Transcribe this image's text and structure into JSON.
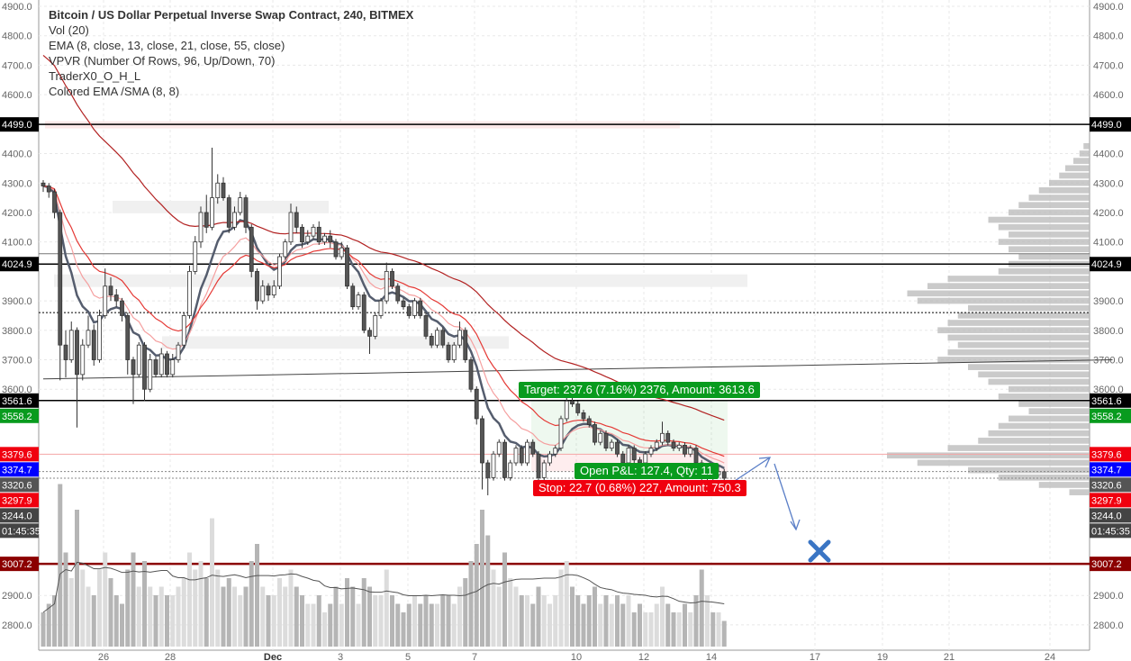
{
  "legend": {
    "title": "Bitcoin / US Dollar Perpetual Inverse Swap Contract, 240, BITMEX",
    "indicators": [
      "Vol (20)",
      "EMA (8, close, 13, close, 21, close, 55, close)",
      "VPVR (Number Of Rows, 96, Up/Down, 70)",
      "TraderX0_O_H_L",
      "Colored EMA /SMA (8, 8)"
    ]
  },
  "position": {
    "target_label": "Target: 237.6 (7.16%) 2376, Amount: 3613.6",
    "open_pnl_label": "Open P&L: 127.4, Qty: 11",
    "stop_label": "Stop: 22.7 (0.68%) 227, Amount: 750.3",
    "target_color": "#089b1e",
    "stop_color": "#f0000f"
  },
  "chart_data": {
    "type": "candlestick",
    "symbol": "Bitcoin / US Dollar Perpetual Inverse Swap Contract",
    "interval": "240",
    "exchange": "BITMEX",
    "ylim": [
      2780,
      4910
    ],
    "y_ticks": [
      4900,
      4800,
      4700,
      4600,
      4400,
      4300,
      4200,
      4100,
      3900,
      3800,
      3700,
      3600,
      2900,
      2800
    ],
    "x_ticks": [
      "26",
      "28",
      "Dec",
      "3",
      "5",
      "7",
      "10",
      "12",
      "14",
      "17",
      "19",
      "21",
      "24"
    ],
    "grid": true,
    "candles_ohlc": [
      [
        4300,
        4310,
        4270,
        4290
      ],
      [
        4290,
        4300,
        4250,
        4270
      ],
      [
        4270,
        4280,
        4180,
        4200
      ],
      [
        4200,
        4210,
        3630,
        3750
      ],
      [
        3750,
        3800,
        3640,
        3700
      ],
      [
        3700,
        3830,
        3690,
        3800
      ],
      [
        3800,
        3810,
        3470,
        3650
      ],
      [
        3650,
        3770,
        3630,
        3750
      ],
      [
        3750,
        3850,
        3740,
        3800
      ],
      [
        3800,
        3820,
        3680,
        3700
      ],
      [
        3700,
        3870,
        3690,
        3850
      ],
      [
        3850,
        4010,
        3840,
        3950
      ],
      [
        3950,
        3980,
        3900,
        3920
      ],
      [
        3920,
        3940,
        3880,
        3900
      ],
      [
        3900,
        3910,
        3830,
        3850
      ],
      [
        3850,
        3860,
        3650,
        3700
      ],
      [
        3700,
        3710,
        3550,
        3650
      ],
      [
        3650,
        3760,
        3640,
        3750
      ],
      [
        3750,
        3760,
        3560,
        3600
      ],
      [
        3600,
        3720,
        3590,
        3700
      ],
      [
        3700,
        3710,
        3640,
        3650
      ],
      [
        3650,
        3740,
        3640,
        3720
      ],
      [
        3720,
        3730,
        3640,
        3650
      ],
      [
        3650,
        3720,
        3640,
        3700
      ],
      [
        3700,
        3760,
        3690,
        3750
      ],
      [
        3750,
        3860,
        3740,
        3850
      ],
      [
        3850,
        4020,
        3840,
        4000
      ],
      [
        4000,
        4120,
        3990,
        4100
      ],
      [
        4100,
        4220,
        4080,
        4200
      ],
      [
        4200,
        4260,
        4130,
        4150
      ],
      [
        4150,
        4420,
        4140,
        4250
      ],
      [
        4250,
        4330,
        4230,
        4300
      ],
      [
        4300,
        4320,
        4240,
        4250
      ],
      [
        4250,
        4260,
        4130,
        4150
      ],
      [
        4150,
        4220,
        4140,
        4200
      ],
      [
        4200,
        4270,
        4190,
        4250
      ],
      [
        4250,
        4260,
        4130,
        4150
      ],
      [
        4150,
        4160,
        3980,
        4000
      ],
      [
        4000,
        4010,
        3870,
        3900
      ],
      [
        3900,
        3970,
        3890,
        3950
      ],
      [
        3950,
        3960,
        3900,
        3920
      ],
      [
        3920,
        3970,
        3910,
        3950
      ],
      [
        3950,
        4060,
        3940,
        4050
      ],
      [
        4050,
        4110,
        4040,
        4100
      ],
      [
        4100,
        4230,
        4090,
        4200
      ],
      [
        4200,
        4220,
        4130,
        4150
      ],
      [
        4150,
        4160,
        4080,
        4100
      ],
      [
        4100,
        4140,
        4090,
        4120
      ],
      [
        4120,
        4160,
        4110,
        4150
      ],
      [
        4150,
        4170,
        4090,
        4100
      ],
      [
        4100,
        4130,
        4090,
        4120
      ],
      [
        4120,
        4140,
        4080,
        4100
      ],
      [
        4100,
        4110,
        4040,
        4050
      ],
      [
        4050,
        4100,
        4040,
        4080
      ],
      [
        4080,
        4090,
        3940,
        3950
      ],
      [
        3950,
        3960,
        3870,
        3880
      ],
      [
        3880,
        3930,
        3870,
        3920
      ],
      [
        3920,
        3930,
        3790,
        3800
      ],
      [
        3800,
        3810,
        3720,
        3780
      ],
      [
        3780,
        3860,
        3770,
        3850
      ],
      [
        3850,
        3910,
        3840,
        3900
      ],
      [
        3900,
        4030,
        3890,
        4000
      ],
      [
        4000,
        4010,
        3940,
        3950
      ],
      [
        3950,
        3960,
        3890,
        3900
      ],
      [
        3900,
        3910,
        3870,
        3880
      ],
      [
        3880,
        3890,
        3840,
        3850
      ],
      [
        3850,
        3910,
        3840,
        3900
      ],
      [
        3900,
        3910,
        3840,
        3850
      ],
      [
        3850,
        3860,
        3770,
        3780
      ],
      [
        3780,
        3790,
        3740,
        3750
      ],
      [
        3750,
        3810,
        3740,
        3800
      ],
      [
        3800,
        3810,
        3740,
        3750
      ],
      [
        3750,
        3760,
        3690,
        3700
      ],
      [
        3700,
        3760,
        3690,
        3750
      ],
      [
        3750,
        3830,
        3740,
        3800
      ],
      [
        3800,
        3810,
        3690,
        3700
      ],
      [
        3700,
        3710,
        3590,
        3600
      ],
      [
        3600,
        3610,
        3480,
        3500
      ],
      [
        3500,
        3510,
        3260,
        3350
      ],
      [
        3350,
        3360,
        3240,
        3300
      ],
      [
        3300,
        3390,
        3290,
        3380
      ],
      [
        3380,
        3430,
        3370,
        3420
      ],
      [
        3420,
        3430,
        3290,
        3300
      ],
      [
        3300,
        3360,
        3290,
        3350
      ],
      [
        3350,
        3410,
        3340,
        3400
      ],
      [
        3400,
        3410,
        3340,
        3350
      ],
      [
        3350,
        3430,
        3340,
        3420
      ],
      [
        3420,
        3430,
        3370,
        3380
      ],
      [
        3380,
        3390,
        3290,
        3300
      ],
      [
        3300,
        3360,
        3290,
        3350
      ],
      [
        3350,
        3390,
        3340,
        3380
      ],
      [
        3380,
        3410,
        3370,
        3400
      ],
      [
        3400,
        3510,
        3390,
        3500
      ],
      [
        3500,
        3600,
        3490,
        3560
      ],
      [
        3560,
        3620,
        3540,
        3550
      ],
      [
        3550,
        3560,
        3510,
        3520
      ],
      [
        3520,
        3530,
        3490,
        3500
      ],
      [
        3500,
        3510,
        3470,
        3480
      ],
      [
        3480,
        3490,
        3410,
        3420
      ],
      [
        3420,
        3460,
        3410,
        3450
      ],
      [
        3450,
        3460,
        3390,
        3400
      ],
      [
        3400,
        3430,
        3390,
        3420
      ],
      [
        3420,
        3430,
        3370,
        3380
      ],
      [
        3380,
        3390,
        3340,
        3350
      ],
      [
        3350,
        3410,
        3340,
        3400
      ],
      [
        3400,
        3410,
        3350,
        3360
      ],
      [
        3360,
        3370,
        3340,
        3350
      ],
      [
        3350,
        3390,
        3340,
        3380
      ],
      [
        3380,
        3410,
        3370,
        3400
      ],
      [
        3400,
        3430,
        3390,
        3420
      ],
      [
        3420,
        3490,
        3410,
        3450
      ],
      [
        3450,
        3460,
        3410,
        3420
      ],
      [
        3420,
        3430,
        3390,
        3400
      ],
      [
        3400,
        3420,
        3390,
        3410
      ],
      [
        3410,
        3420,
        3370,
        3380
      ],
      [
        3380,
        3410,
        3370,
        3400
      ],
      [
        3400,
        3410,
        3340,
        3350
      ],
      [
        3350,
        3360,
        3290,
        3300
      ],
      [
        3300,
        3330,
        3290,
        3320
      ],
      [
        3320,
        3330,
        3290,
        3310
      ],
      [
        3310,
        3340,
        3300,
        3320
      ],
      [
        3320,
        3330,
        3244,
        3298
      ]
    ],
    "volume_relative": [
      20,
      25,
      30,
      95,
      55,
      40,
      80,
      45,
      35,
      30,
      45,
      55,
      40,
      30,
      25,
      45,
      55,
      35,
      50,
      35,
      30,
      35,
      30,
      30,
      35,
      40,
      55,
      45,
      50,
      40,
      75,
      45,
      35,
      40,
      35,
      30,
      35,
      50,
      60,
      35,
      30,
      30,
      40,
      35,
      45,
      35,
      30,
      25,
      25,
      30,
      20,
      25,
      35,
      25,
      40,
      35,
      25,
      40,
      35,
      30,
      30,
      45,
      30,
      25,
      20,
      25,
      30,
      25,
      30,
      25,
      25,
      30,
      30,
      25,
      35,
      40,
      50,
      60,
      80,
      65,
      45,
      35,
      55,
      40,
      35,
      30,
      30,
      25,
      35,
      30,
      25,
      30,
      45,
      50,
      35,
      30,
      25,
      30,
      35,
      25,
      30,
      25,
      30,
      25,
      30,
      20,
      25,
      20,
      20,
      25,
      35,
      25,
      20,
      20,
      25,
      20,
      30,
      45,
      30,
      20,
      20,
      15
    ],
    "ema_periods": [
      8,
      13,
      21,
      55
    ],
    "volume_ma_period": 20,
    "volume_profile": [
      [
        3250,
        10
      ],
      [
        3275,
        25
      ],
      [
        3300,
        45
      ],
      [
        3325,
        60
      ],
      [
        3350,
        85
      ],
      [
        3375,
        100
      ],
      [
        3400,
        70
      ],
      [
        3425,
        55
      ],
      [
        3450,
        50
      ],
      [
        3475,
        45
      ],
      [
        3500,
        40
      ],
      [
        3525,
        30
      ],
      [
        3550,
        35
      ],
      [
        3575,
        45
      ],
      [
        3600,
        40
      ],
      [
        3625,
        50
      ],
      [
        3650,
        55
      ],
      [
        3675,
        60
      ],
      [
        3700,
        75
      ],
      [
        3725,
        70
      ],
      [
        3750,
        65
      ],
      [
        3775,
        70
      ],
      [
        3800,
        75
      ],
      [
        3825,
        70
      ],
      [
        3850,
        65
      ],
      [
        3875,
        60
      ],
      [
        3900,
        85
      ],
      [
        3925,
        90
      ],
      [
        3950,
        80
      ],
      [
        3975,
        70
      ],
      [
        4000,
        45
      ],
      [
        4025,
        40
      ],
      [
        4050,
        35
      ],
      [
        4075,
        40
      ],
      [
        4100,
        45
      ],
      [
        4125,
        40
      ],
      [
        4150,
        45
      ],
      [
        4175,
        50
      ],
      [
        4200,
        40
      ],
      [
        4225,
        35
      ],
      [
        4250,
        30
      ],
      [
        4275,
        25
      ],
      [
        4300,
        20
      ],
      [
        4325,
        15
      ],
      [
        4350,
        12
      ],
      [
        4375,
        8
      ],
      [
        4400,
        5
      ],
      [
        4425,
        3
      ]
    ],
    "price_labels": [
      {
        "text": "4499.0",
        "price": 4499.0,
        "color": "#000000",
        "line": "solid"
      },
      {
        "text": "4024.9",
        "price": 4024.9,
        "color": "#000000",
        "line": "solid"
      },
      {
        "text": "3561.6",
        "price": 3561.6,
        "color": "#000000",
        "line": "solid"
      },
      {
        "text": "3558.2",
        "price": 3558.2,
        "color": "#089b1e",
        "line": "none"
      },
      {
        "text": "3379.6",
        "price": 3379.6,
        "color": "#f0000f",
        "line": "pink"
      },
      {
        "text": "3374.7",
        "price": 3374.7,
        "color": "#0000ff",
        "line": "none"
      },
      {
        "text": "3320.6",
        "price": 3320.6,
        "color": "#555555",
        "line": "dotted"
      },
      {
        "text": "3297.9",
        "price": 3297.9,
        "color": "#f0000f",
        "line": "dotted"
      },
      {
        "text": "3244.0",
        "price": 3244.0,
        "color": "#444444",
        "line": "none"
      },
      {
        "text": "01:45:35",
        "price": 3190,
        "color": "#444444",
        "line": "none"
      },
      {
        "text": "3007.2",
        "price": 3007.2,
        "color": "#8b0000",
        "line": "thick"
      }
    ],
    "extra_lines": [
      {
        "price": 4060,
        "style": "gray"
      },
      {
        "price": 3860,
        "style": "dotted-black"
      }
    ],
    "trendline": [
      [
        0,
        3635
      ],
      [
        190,
        3700
      ]
    ],
    "up_color": "#ffffff",
    "down_color": "#555555",
    "ema_colors": [
      "#555d6e",
      "#f5a0a0",
      "#e53935",
      "#b22222"
    ],
    "drawing_color": "#5b7fc7"
  }
}
